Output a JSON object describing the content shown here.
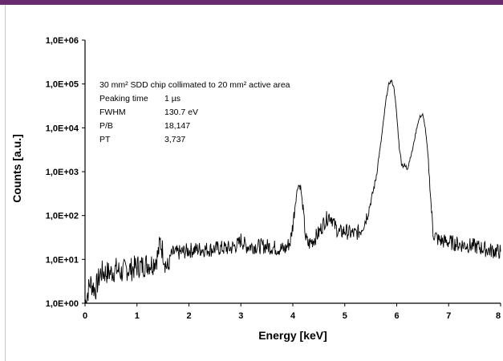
{
  "colors": {
    "accent_bar": "#6a2a6e",
    "series": "#000000"
  },
  "chart_data": {
    "type": "line",
    "xlabel": "Energy [keV]",
    "ylabel": "Counts [a.u.]",
    "xlim": [
      0,
      8
    ],
    "ylim": [
      1,
      1000000
    ],
    "yscale": "log",
    "grid": false,
    "x_ticks": [
      "0",
      "1",
      "2",
      "3",
      "4",
      "5",
      "6",
      "7",
      "8"
    ],
    "y_ticks": [
      "1,0E+00",
      "1,0E+01",
      "1,0E+02",
      "1,0E+03",
      "1,0E+04",
      "1,0E+05",
      "1,0E+06"
    ],
    "annotation": {
      "title": "30 mm² SDD chip collimated to 20 mm² active area",
      "rows": [
        {
          "label": "Peaking time",
          "value": "1 µs"
        },
        {
          "label": "FWHM",
          "value": "130.7 eV"
        },
        {
          "label": "P/B",
          "value": "18,147"
        },
        {
          "label": "PT",
          "value": "3,737"
        }
      ]
    },
    "series": [
      {
        "x": [
          0.0,
          0.1,
          0.2,
          0.3,
          0.4,
          0.5,
          0.6,
          0.7,
          0.8,
          0.9,
          1.0,
          1.1,
          1.2,
          1.3,
          1.4,
          1.45,
          1.5,
          1.55,
          1.6,
          1.65,
          1.7,
          1.8,
          1.9,
          2.0,
          2.2,
          2.4,
          2.6,
          2.8,
          2.95,
          3.0,
          3.1,
          3.3,
          3.5,
          3.7,
          3.85,
          3.95,
          4.0,
          4.05,
          4.1,
          4.15,
          4.2,
          4.25,
          4.3,
          4.4,
          4.5,
          4.6,
          4.7,
          4.75,
          4.8,
          4.9,
          5.0,
          5.1,
          5.2,
          5.3,
          5.4,
          5.5,
          5.6,
          5.7,
          5.8,
          5.85,
          5.9,
          5.95,
          6.0,
          6.05,
          6.1,
          6.2,
          6.3,
          6.4,
          6.45,
          6.5,
          6.55,
          6.6,
          6.65,
          6.7,
          6.8,
          6.9,
          7.0,
          7.2,
          7.5,
          7.8,
          8.0
        ],
        "y": [
          1,
          3,
          2,
          5,
          5,
          5,
          6,
          5,
          6,
          6,
          7,
          7,
          8,
          8,
          12,
          25,
          15,
          8,
          6,
          12,
          14,
          14,
          15,
          16,
          17,
          17,
          18,
          18,
          22,
          28,
          20,
          20,
          20,
          18,
          17,
          25,
          60,
          200,
          500,
          450,
          120,
          30,
          22,
          28,
          40,
          70,
          100,
          90,
          60,
          40,
          45,
          40,
          38,
          45,
          80,
          200,
          700,
          5000,
          50000,
          100000,
          120000,
          80000,
          20000,
          3500,
          1500,
          1200,
          3000,
          12000,
          18000,
          20000,
          10000,
          2500,
          300,
          40,
          28,
          26,
          25,
          22,
          20,
          16,
          15
        ]
      }
    ]
  }
}
